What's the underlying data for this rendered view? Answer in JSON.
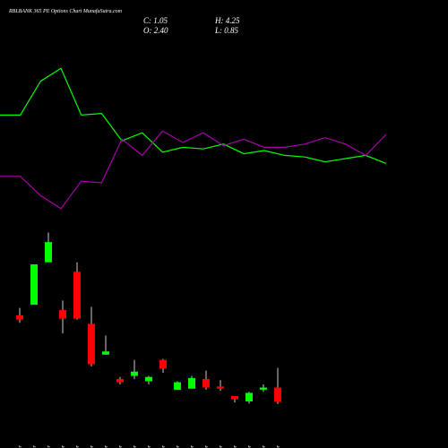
{
  "chart_data": [
    {
      "type": "candlestick",
      "title": "RBLBANK 365 PE Options  Chart MunafaSutra.com",
      "ohlc_labels": [
        "C: 1.05",
        "H: 4.25",
        "O: 2.40",
        "L: 0.85"
      ],
      "categories": [
        "25 Mar",
        "27 Mar",
        "28 Mar",
        "01 Apr",
        "02 Apr",
        "03 Apr",
        "07 Apr",
        "08 Apr",
        "09 Apr",
        "10 Apr",
        "11 Apr",
        "15 Apr",
        "16 Apr",
        "17 Apr",
        "20 Apr",
        "21 Apr",
        "22 Apr",
        "23 Apr",
        "24 Apr"
      ],
      "open": [
        9.2,
        10.2,
        14.2,
        9.7,
        13.3,
        8.4,
        5.5,
        3.2,
        3.5,
        3.0,
        5.0,
        2.2,
        2.3,
        3.2,
        2.5,
        1.6,
        1.1,
        2.2,
        2.4
      ],
      "high": [
        9.9,
        14.0,
        17.0,
        10.6,
        14.2,
        10.0,
        7.3,
        3.4,
        5.0,
        3.5,
        5.1,
        3.0,
        3.5,
        4.0,
        3.1,
        1.6,
        2.0,
        2.7,
        4.25
      ],
      "low": [
        8.5,
        10.2,
        14.2,
        7.5,
        8.8,
        4.4,
        5.5,
        2.7,
        3.2,
        2.7,
        3.8,
        2.2,
        2.3,
        2.2,
        2.1,
        1.0,
        0.9,
        2.0,
        0.85
      ],
      "close": [
        8.8,
        14.0,
        16.1,
        8.9,
        8.9,
        4.6,
        5.8,
        2.9,
        3.9,
        3.4,
        4.2,
        2.9,
        3.3,
        2.4,
        2.3,
        1.3,
        1.9,
        2.4,
        1.05
      ],
      "up_color": "#00ff00",
      "down_color": "#ff0000",
      "ylim": [
        0,
        17.5
      ]
    },
    {
      "type": "line",
      "x": [
        0,
        1,
        2,
        3,
        4,
        5,
        6,
        7,
        8,
        9,
        10,
        11,
        12,
        13,
        14,
        15,
        16,
        17,
        18,
        19
      ],
      "xlim": [
        0,
        20
      ],
      "ylim": [
        0,
        100
      ],
      "series": [
        {
          "color": "#00ff00",
          "values": [
            62,
            62,
            83,
            91,
            62,
            63,
            46,
            51,
            39,
            42,
            41,
            44,
            38,
            40,
            37,
            36,
            33,
            35,
            37,
            32
          ]
        },
        {
          "color": "#aa00aa",
          "values": [
            24,
            24,
            12,
            4,
            21,
            20,
            47,
            37,
            52,
            45,
            51,
            43,
            47,
            42,
            42,
            44,
            48,
            44,
            37,
            50
          ]
        }
      ]
    }
  ]
}
